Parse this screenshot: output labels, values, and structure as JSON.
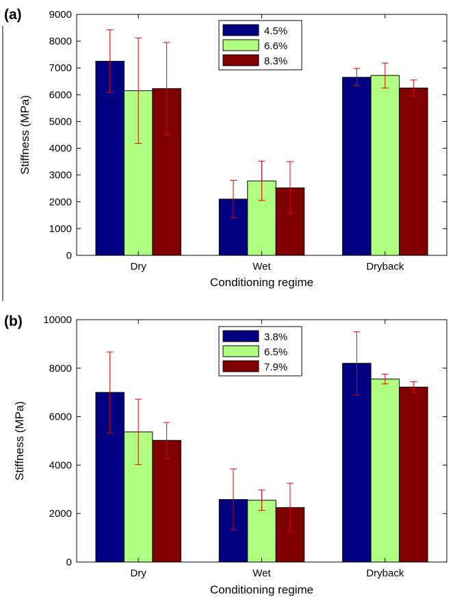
{
  "chart_data": [
    {
      "type": "bar",
      "panel_label": "(a)",
      "categories": [
        "Dry",
        "Wet",
        "Dryback"
      ],
      "series": [
        {
          "name": "4.5%",
          "values": [
            7250,
            2100,
            6650
          ],
          "error_low": [
            6080,
            1400,
            6350
          ],
          "error_high": [
            8420,
            2800,
            6980
          ]
        },
        {
          "name": "6.6%",
          "values": [
            6150,
            2780,
            6720
          ],
          "error_low": [
            4180,
            2050,
            6250
          ],
          "error_high": [
            8120,
            3520,
            7180
          ]
        },
        {
          "name": "8.3%",
          "values": [
            6230,
            2520,
            6250
          ],
          "error_low": [
            4520,
            1550,
            5950
          ],
          "error_high": [
            7950,
            3500,
            6550
          ]
        }
      ],
      "xlabel": "Conditioning regime",
      "ylabel": "Stiffness (MPa)",
      "ylim": [
        0,
        9000
      ],
      "yticks": [
        0,
        1000,
        2000,
        3000,
        4000,
        5000,
        6000,
        7000,
        8000,
        9000
      ],
      "legend": "top-center",
      "grid": false
    },
    {
      "type": "bar",
      "panel_label": "(b)",
      "categories": [
        "Dry",
        "Wet",
        "Dryback"
      ],
      "series": [
        {
          "name": "3.8%",
          "values": [
            7000,
            2580,
            8200
          ],
          "error_low": [
            5330,
            1330,
            6900
          ],
          "error_high": [
            8670,
            3840,
            9500
          ]
        },
        {
          "name": "6.5%",
          "values": [
            5370,
            2550,
            7550
          ],
          "error_low": [
            4020,
            2130,
            7350
          ],
          "error_high": [
            6720,
            2970,
            7750
          ]
        },
        {
          "name": "7.9%",
          "values": [
            5020,
            2250,
            7220
          ],
          "error_low": [
            4280,
            1250,
            7000
          ],
          "error_high": [
            5760,
            3250,
            7440
          ]
        }
      ],
      "xlabel": "Conditioning regime",
      "ylabel": "Stiffness (MPa)",
      "ylim": [
        0,
        10000
      ],
      "yticks": [
        0,
        2000,
        4000,
        6000,
        8000,
        10000
      ],
      "legend": "top-center",
      "grid": false
    }
  ],
  "style": {
    "series_colors": [
      "#000080",
      "#b0ff80",
      "#800000"
    ],
    "error_bar_color": "#e00000"
  }
}
